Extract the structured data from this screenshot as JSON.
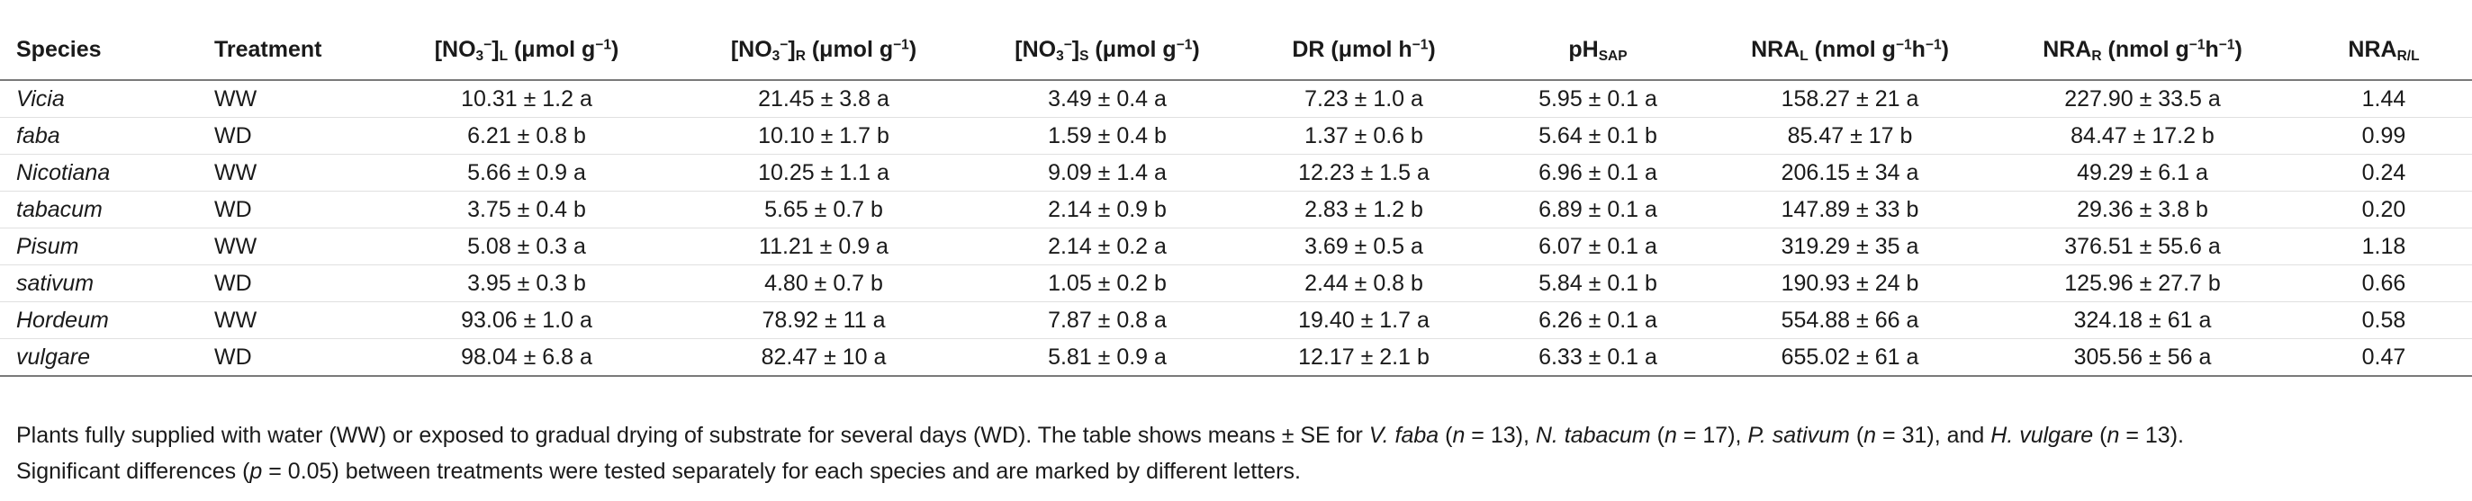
{
  "headers": {
    "species": "Species",
    "treatment": "Treatment",
    "no3_l": {
      "pre": "[NO",
      "sub": "3",
      "sup": "−",
      "close": "]",
      "sub2": "L",
      "unit_pre": " (μmol g",
      "unit_sup": "−1",
      "unit_post": ")"
    },
    "no3_r": {
      "pre": "[NO",
      "sub": "3",
      "sup": "−",
      "close": "]",
      "sub2": "R",
      "unit_pre": " (μmol g",
      "unit_sup": "−1",
      "unit_post": ")"
    },
    "no3_s": {
      "pre": "[NO",
      "sub": "3",
      "sup": "−",
      "close": "]",
      "sub2": "S",
      "unit_pre": " (μmol g",
      "unit_sup": "−1",
      "unit_post": ")"
    },
    "dr": {
      "pre": "DR (μmol h",
      "sup": "−1",
      "post": ")"
    },
    "ph": {
      "pre": "pH",
      "sub": "SAP"
    },
    "nra_l": {
      "pre": "NRA",
      "sub": "L",
      "unit_pre": " (nmol g",
      "unit_sup1": "−1",
      "unit_mid": "h",
      "unit_sup2": "−1",
      "unit_post": ")"
    },
    "nra_r": {
      "pre": "NRA",
      "sub": "R",
      "unit_pre": " (nmol g",
      "unit_sup1": "−1",
      "unit_mid": "h",
      "unit_sup2": "−1",
      "unit_post": ")"
    },
    "nra_rl": {
      "pre": "NRA",
      "sub": "R/L"
    }
  },
  "rows": [
    {
      "species": "Vicia",
      "treatment": "WW",
      "no3_l": "10.31 ± 1.2 a",
      "no3_r": "21.45 ± 3.8 a",
      "no3_s": "3.49 ± 0.4 a",
      "dr": "7.23 ± 1.0 a",
      "ph": "5.95 ± 0.1 a",
      "nra_l": "158.27 ± 21 a",
      "nra_r": "227.90 ± 33.5 a",
      "nra_rl": "1.44"
    },
    {
      "species": "faba",
      "treatment": "WD",
      "no3_l": "6.21 ± 0.8 b",
      "no3_r": "10.10 ± 1.7 b",
      "no3_s": "1.59 ± 0.4 b",
      "dr": "1.37 ± 0.6 b",
      "ph": "5.64 ± 0.1 b",
      "nra_l": "85.47 ± 17 b",
      "nra_r": "84.47 ± 17.2 b",
      "nra_rl": "0.99"
    },
    {
      "species": "Nicotiana",
      "treatment": "WW",
      "no3_l": "5.66 ± 0.9 a",
      "no3_r": "10.25 ± 1.1 a",
      "no3_s": "9.09 ± 1.4 a",
      "dr": "12.23 ± 1.5 a",
      "ph": "6.96 ± 0.1 a",
      "nra_l": "206.15 ± 34 a",
      "nra_r": "49.29 ± 6.1 a",
      "nra_rl": "0.24"
    },
    {
      "species": "tabacum",
      "treatment": "WD",
      "no3_l": "3.75 ± 0.4 b",
      "no3_r": "5.65 ± 0.7 b",
      "no3_s": "2.14 ± 0.9 b",
      "dr": "2.83 ± 1.2 b",
      "ph": "6.89 ± 0.1 a",
      "nra_l": "147.89 ± 33 b",
      "nra_r": "29.36 ± 3.8 b",
      "nra_rl": "0.20"
    },
    {
      "species": "Pisum",
      "treatment": "WW",
      "no3_l": "5.08 ± 0.3 a",
      "no3_r": "11.21 ± 0.9 a",
      "no3_s": "2.14 ± 0.2 a",
      "dr": "3.69 ± 0.5 a",
      "ph": "6.07 ± 0.1 a",
      "nra_l": "319.29 ± 35 a",
      "nra_r": "376.51 ± 55.6 a",
      "nra_rl": "1.18"
    },
    {
      "species": "sativum",
      "treatment": "WD",
      "no3_l": "3.95 ± 0.3 b",
      "no3_r": "4.80 ± 0.7 b",
      "no3_s": "1.05 ± 0.2 b",
      "dr": "2.44 ± 0.8 b",
      "ph": "5.84 ± 0.1 b",
      "nra_l": "190.93 ± 24 b",
      "nra_r": "125.96 ± 27.7 b",
      "nra_rl": "0.66"
    },
    {
      "species": "Hordeum",
      "treatment": "WW",
      "no3_l": "93.06 ± 1.0 a",
      "no3_r": "78.92 ± 11 a",
      "no3_s": "7.87 ± 0.8 a",
      "dr": "19.40 ± 1.7 a",
      "ph": "6.26 ± 0.1 a",
      "nra_l": "554.88 ± 66 a",
      "nra_r": "324.18 ± 61 a",
      "nra_rl": "0.58"
    },
    {
      "species": "vulgare",
      "treatment": "WD",
      "no3_l": "98.04 ± 6.8 a",
      "no3_r": "82.47 ± 10 a",
      "no3_s": "5.81 ± 0.9 a",
      "dr": "12.17 ± 2.1 b",
      "ph": "6.33 ± 0.1 a",
      "nra_l": "655.02 ± 61 a",
      "nra_r": "305.56 ± 56 a",
      "nra_rl": "0.47"
    }
  ],
  "footnote": {
    "line1_a": "Plants fully supplied with water (WW) or exposed to gradual drying of substrate for several days (WD). The table shows means ± SE for ",
    "sp1": "V. faba",
    "n1_open": " (",
    "n_letter": "n",
    "n1_val": " = 13), ",
    "sp2": "N. tabacum",
    "n2_val": " = 17), ",
    "sp3": "P. sativum",
    "n3_val": " = 31), and ",
    "sp4": "H. vulgare",
    "n4_val": " = 13).",
    "line2_a": "Significant differences (",
    "p_letter": "p",
    "line2_b": " = 0.05) between treatments were tested separately for each species and are marked by different letters."
  }
}
